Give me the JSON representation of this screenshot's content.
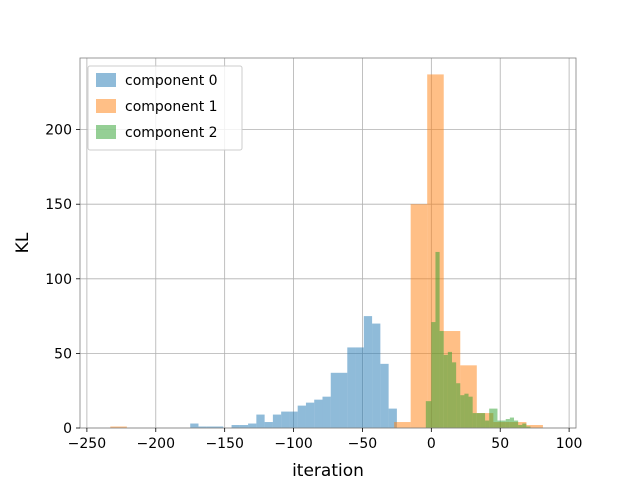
{
  "chart_data": {
    "type": "bar",
    "xlabel": "iteration",
    "ylabel": "KL",
    "xlim": [
      -255,
      105
    ],
    "ylim": [
      0,
      248
    ],
    "grid": true,
    "legend_position": "upper-left",
    "x_ticks": [
      {
        "value": -250,
        "label": "−250"
      },
      {
        "value": -200,
        "label": "−200"
      },
      {
        "value": -150,
        "label": "−150"
      },
      {
        "value": -100,
        "label": "−100"
      },
      {
        "value": -50,
        "label": "−50"
      },
      {
        "value": 0,
        "label": "0"
      },
      {
        "value": 50,
        "label": "50"
      },
      {
        "value": 100,
        "label": "100"
      }
    ],
    "y_ticks": [
      {
        "value": 0,
        "label": "0"
      },
      {
        "value": 50,
        "label": "50"
      },
      {
        "value": 100,
        "label": "100"
      },
      {
        "value": 150,
        "label": "150"
      },
      {
        "value": 200,
        "label": "200"
      }
    ],
    "series": [
      {
        "name": "component 0",
        "color": "#1f77b4",
        "opacity": 0.5,
        "bins": [
          {
            "x0": -175,
            "x1": -169,
            "value": 3
          },
          {
            "x0": -169,
            "x1": -163,
            "value": 1
          },
          {
            "x0": -163,
            "x1": -157,
            "value": 1
          },
          {
            "x0": -157,
            "x1": -151,
            "value": 1
          },
          {
            "x0": -145,
            "x1": -139,
            "value": 2
          },
          {
            "x0": -139,
            "x1": -133,
            "value": 2
          },
          {
            "x0": -133,
            "x1": -127,
            "value": 3
          },
          {
            "x0": -127,
            "x1": -121,
            "value": 9
          },
          {
            "x0": -121,
            "x1": -115,
            "value": 4
          },
          {
            "x0": -115,
            "x1": -109,
            "value": 9
          },
          {
            "x0": -109,
            "x1": -103,
            "value": 11
          },
          {
            "x0": -103,
            "x1": -97,
            "value": 11
          },
          {
            "x0": -97,
            "x1": -91,
            "value": 15
          },
          {
            "x0": -91,
            "x1": -85,
            "value": 17
          },
          {
            "x0": -85,
            "x1": -79,
            "value": 19
          },
          {
            "x0": -79,
            "x1": -73,
            "value": 21
          },
          {
            "x0": -73,
            "x1": -67,
            "value": 37
          },
          {
            "x0": -67,
            "x1": -61,
            "value": 37
          },
          {
            "x0": -61,
            "x1": -55,
            "value": 54
          },
          {
            "x0": -55,
            "x1": -49,
            "value": 54
          },
          {
            "x0": -49,
            "x1": -43,
            "value": 75
          },
          {
            "x0": -43,
            "x1": -37,
            "value": 70
          },
          {
            "x0": -37,
            "x1": -31,
            "value": 43
          },
          {
            "x0": -31,
            "x1": -25,
            "value": 13
          }
        ]
      },
      {
        "name": "component 1",
        "color": "#ff7f0e",
        "opacity": 0.5,
        "bins": [
          {
            "x0": -233,
            "x1": -221,
            "value": 1
          },
          {
            "x0": -27,
            "x1": -15,
            "value": 4
          },
          {
            "x0": -15,
            "x1": -3,
            "value": 150
          },
          {
            "x0": -3,
            "x1": 9,
            "value": 237
          },
          {
            "x0": 9,
            "x1": 21,
            "value": 65
          },
          {
            "x0": 21,
            "x1": 33,
            "value": 42
          },
          {
            "x0": 33,
            "x1": 45,
            "value": 10
          },
          {
            "x0": 45,
            "x1": 57,
            "value": 4
          },
          {
            "x0": 57,
            "x1": 69,
            "value": 4
          },
          {
            "x0": 69,
            "x1": 81,
            "value": 2
          }
        ]
      },
      {
        "name": "component 2",
        "color": "#2ca02c",
        "opacity": 0.5,
        "bins": [
          {
            "x0": -4,
            "x1": 0,
            "value": 18
          },
          {
            "x0": 0,
            "x1": 3,
            "value": 71
          },
          {
            "x0": 3,
            "x1": 6,
            "value": 118
          },
          {
            "x0": 6,
            "x1": 9,
            "value": 65
          },
          {
            "x0": 9,
            "x1": 12,
            "value": 49
          },
          {
            "x0": 12,
            "x1": 15,
            "value": 51
          },
          {
            "x0": 15,
            "x1": 18,
            "value": 44
          },
          {
            "x0": 18,
            "x1": 21,
            "value": 30
          },
          {
            "x0": 21,
            "x1": 24,
            "value": 22
          },
          {
            "x0": 24,
            "x1": 27,
            "value": 23
          },
          {
            "x0": 27,
            "x1": 30,
            "value": 21
          },
          {
            "x0": 30,
            "x1": 33,
            "value": 10
          },
          {
            "x0": 33,
            "x1": 36,
            "value": 10
          },
          {
            "x0": 36,
            "x1": 39,
            "value": 10
          },
          {
            "x0": 39,
            "x1": 42,
            "value": 5
          },
          {
            "x0": 42,
            "x1": 48,
            "value": 13
          },
          {
            "x0": 48,
            "x1": 51,
            "value": 5
          },
          {
            "x0": 51,
            "x1": 54,
            "value": 5
          },
          {
            "x0": 54,
            "x1": 57,
            "value": 6
          },
          {
            "x0": 57,
            "x1": 60,
            "value": 7
          },
          {
            "x0": 60,
            "x1": 63,
            "value": 5
          },
          {
            "x0": 63,
            "x1": 66,
            "value": 2
          },
          {
            "x0": 66,
            "x1": 69,
            "value": 3
          },
          {
            "x0": 69,
            "x1": 72,
            "value": 1
          }
        ]
      }
    ]
  }
}
